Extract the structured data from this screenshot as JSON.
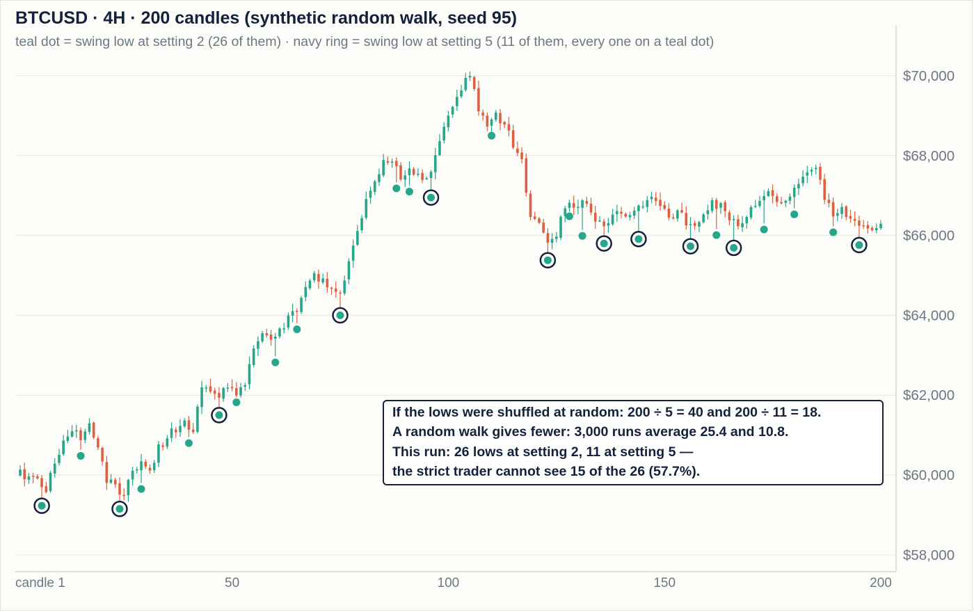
{
  "chart_data": {
    "type": "candlestick",
    "title": "BTCUSD · 4H · 200 candles (synthetic random walk, seed 95)",
    "subtitle": "teal dot = swing low at setting 2 (26 of them) · navy ring = swing low at setting 5 (11 of them, every one on a teal dot)",
    "symbol": "BTCUSD",
    "timeframe": "4H",
    "candle_count": 200,
    "x_ticks": [
      {
        "value": 1,
        "label": "candle 1"
      },
      {
        "value": 50,
        "label": "50"
      },
      {
        "value": 100,
        "label": "100"
      },
      {
        "value": 150,
        "label": "150"
      },
      {
        "value": 200,
        "label": "200"
      }
    ],
    "y_ticks": [
      {
        "value": 58000,
        "label": "$58,000"
      },
      {
        "value": 60000,
        "label": "$60,000"
      },
      {
        "value": 62000,
        "label": "$62,000"
      },
      {
        "value": 64000,
        "label": "$64,000"
      },
      {
        "value": 66000,
        "label": "$66,000"
      },
      {
        "value": 68000,
        "label": "$68,000"
      },
      {
        "value": 70000,
        "label": "$70,000"
      }
    ],
    "xlim": [
      1,
      200
    ],
    "ylim": [
      57800,
      71200
    ],
    "grid": true,
    "close_anchors": [
      [
        1,
        60050
      ],
      [
        3,
        60000
      ],
      [
        7,
        59700
      ],
      [
        9,
        60400
      ],
      [
        11,
        60750
      ],
      [
        13,
        61150
      ],
      [
        15,
        61000
      ],
      [
        17,
        61300
      ],
      [
        19,
        60700
      ],
      [
        21,
        59900
      ],
      [
        23,
        59750
      ],
      [
        25,
        59500
      ],
      [
        27,
        60000
      ],
      [
        29,
        60300
      ],
      [
        31,
        60200
      ],
      [
        33,
        60650
      ],
      [
        35,
        61000
      ],
      [
        37,
        61100
      ],
      [
        39,
        61300
      ],
      [
        41,
        61000
      ],
      [
        43,
        62200
      ],
      [
        45,
        62100
      ],
      [
        47,
        61900
      ],
      [
        49,
        62300
      ],
      [
        51,
        62100
      ],
      [
        53,
        62300
      ],
      [
        55,
        63200
      ],
      [
        57,
        63600
      ],
      [
        59,
        63400
      ],
      [
        61,
        63600
      ],
      [
        63,
        64000
      ],
      [
        65,
        64200
      ],
      [
        67,
        64700
      ],
      [
        69,
        65000
      ],
      [
        71,
        64800
      ],
      [
        73,
        64700
      ],
      [
        75,
        64600
      ],
      [
        77,
        65400
      ],
      [
        79,
        66200
      ],
      [
        81,
        66900
      ],
      [
        83,
        67300
      ],
      [
        85,
        67800
      ],
      [
        87,
        67800
      ],
      [
        89,
        67500
      ],
      [
        91,
        67600
      ],
      [
        93,
        67550
      ],
      [
        95,
        67450
      ],
      [
        97,
        67900
      ],
      [
        99,
        68600
      ],
      [
        101,
        69300
      ],
      [
        103,
        69700
      ],
      [
        105,
        70000
      ],
      [
        107,
        69200
      ],
      [
        109,
        68800
      ],
      [
        111,
        69000
      ],
      [
        113,
        68700
      ],
      [
        115,
        68300
      ],
      [
        117,
        67800
      ],
      [
        119,
        66500
      ],
      [
        121,
        66300
      ],
      [
        123,
        65900
      ],
      [
        125,
        66100
      ],
      [
        127,
        66800
      ],
      [
        129,
        66800
      ],
      [
        131,
        66800
      ],
      [
        133,
        66600
      ],
      [
        135,
        66300
      ],
      [
        137,
        66400
      ],
      [
        139,
        66500
      ],
      [
        141,
        66600
      ],
      [
        143,
        66600
      ],
      [
        145,
        66800
      ],
      [
        147,
        67000
      ],
      [
        149,
        66700
      ],
      [
        151,
        66500
      ],
      [
        153,
        66600
      ],
      [
        155,
        66300
      ],
      [
        157,
        66200
      ],
      [
        159,
        66600
      ],
      [
        161,
        66800
      ],
      [
        163,
        66700
      ],
      [
        165,
        66400
      ],
      [
        167,
        66200
      ],
      [
        169,
        66500
      ],
      [
        171,
        66700
      ],
      [
        173,
        66900
      ],
      [
        175,
        67100
      ],
      [
        177,
        66800
      ],
      [
        179,
        66900
      ],
      [
        181,
        67300
      ],
      [
        183,
        67700
      ],
      [
        185,
        67600
      ],
      [
        187,
        67000
      ],
      [
        189,
        66600
      ],
      [
        191,
        66600
      ],
      [
        193,
        66300
      ],
      [
        195,
        66200
      ],
      [
        197,
        66200
      ],
      [
        199,
        66300
      ],
      [
        200,
        66350
      ]
    ],
    "swing_lows_setting_2": [
      {
        "candle": 6,
        "price": 59230
      },
      {
        "candle": 15,
        "price": 60480
      },
      {
        "candle": 24,
        "price": 59150
      },
      {
        "candle": 29,
        "price": 59650
      },
      {
        "candle": 40,
        "price": 60800
      },
      {
        "candle": 47,
        "price": 61500
      },
      {
        "candle": 51,
        "price": 61820
      },
      {
        "candle": 60,
        "price": 62820
      },
      {
        "candle": 65,
        "price": 63650
      },
      {
        "candle": 75,
        "price": 64000
      },
      {
        "candle": 88,
        "price": 67180
      },
      {
        "candle": 91,
        "price": 67100
      },
      {
        "candle": 96,
        "price": 66950
      },
      {
        "candle": 110,
        "price": 68500
      },
      {
        "candle": 123,
        "price": 65380
      },
      {
        "candle": 128,
        "price": 66480
      },
      {
        "candle": 131,
        "price": 65990
      },
      {
        "candle": 136,
        "price": 65800
      },
      {
        "candle": 144,
        "price": 65910
      },
      {
        "candle": 156,
        "price": 65730
      },
      {
        "candle": 162,
        "price": 66010
      },
      {
        "candle": 166,
        "price": 65690
      },
      {
        "candle": 173,
        "price": 66150
      },
      {
        "candle": 180,
        "price": 66530
      },
      {
        "candle": 189,
        "price": 66080
      },
      {
        "candle": 195,
        "price": 65760
      }
    ],
    "swing_lows_setting_5_candles": [
      6,
      24,
      47,
      75,
      96,
      123,
      136,
      144,
      156,
      166,
      195
    ],
    "colors": {
      "up": "#26a68b",
      "down": "#e15f41",
      "swing_dot": "#26a68b",
      "swing_ring": "#14213d",
      "grid": "#e6e6e1",
      "axis_text": "#6b7787"
    }
  },
  "annotation": {
    "line1": "If the lows were shuffled at random: 200 ÷ 5 = 40 and 200 ÷ 11 = 18.",
    "line2": "A random walk gives fewer: 3,000 runs average 25.4 and 10.8.",
    "line3": "This run: 26 lows at setting 2, 11 at setting 5 —",
    "line4": "the strict trader cannot see 15 of the 26 (57.7%)."
  }
}
